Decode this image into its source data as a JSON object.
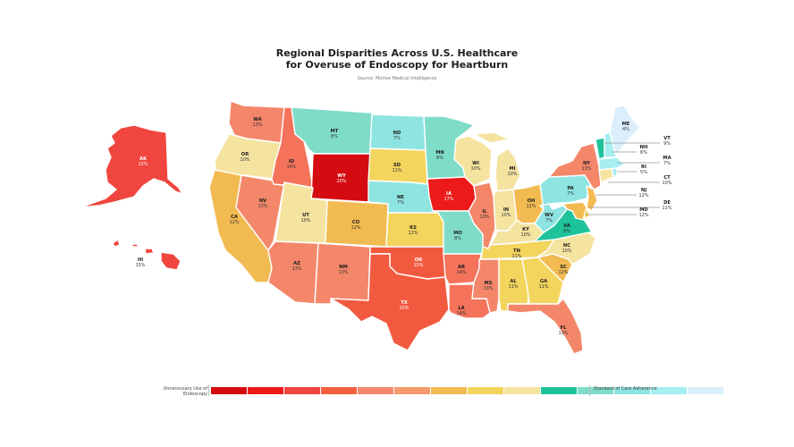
{
  "header": {
    "title_line1": "Regional Disparities Across U.S. Healthcare",
    "title_line2": "for Overuse of Endoscopy for Heartburn",
    "source": "Source: Motive Medical Intelligence"
  },
  "legend": {
    "left_label": "Unnecessary Use of Endoscopy",
    "right_label": "Standard of Care Adherence",
    "colors": [
      "#d40b10",
      "#ec1a1a",
      "#f0463f",
      "#f4603f",
      "#f4876a",
      "#f59a6b",
      "#f2bb52",
      "#f3d45c",
      "#f5e3a0",
      "#1fc39a",
      "#7fdcc8",
      "#8ee4e0",
      "#a6eef0",
      "#dbeefb"
    ]
  },
  "chart_data": {
    "type": "choropleth",
    "title": "Regional Disparities Across U.S. Healthcare for Overuse of Endoscopy for Heartburn",
    "subtitle": "Source: Motive Medical Intelligence",
    "metric": "Overuse of endoscopy for heartburn (%)",
    "legend": {
      "low_label": "Standard of Care Adherence",
      "high_label": "Unnecessary Use of Endoscopy"
    },
    "states": [
      {
        "code": "AK",
        "value": "15%"
      },
      {
        "code": "HI",
        "value": "15%"
      },
      {
        "code": "WA",
        "value": "13%"
      },
      {
        "code": "OR",
        "value": "10%"
      },
      {
        "code": "CA",
        "value": "12%"
      },
      {
        "code": "ID",
        "value": "14%"
      },
      {
        "code": "NV",
        "value": "13%"
      },
      {
        "code": "MT",
        "value": "8%"
      },
      {
        "code": "WY",
        "value": "20%"
      },
      {
        "code": "UT",
        "value": "10%"
      },
      {
        "code": "CO",
        "value": "12%"
      },
      {
        "code": "AZ",
        "value": "13%"
      },
      {
        "code": "NM",
        "value": "13%"
      },
      {
        "code": "ND",
        "value": "7%"
      },
      {
        "code": "SD",
        "value": "11%"
      },
      {
        "code": "NE",
        "value": "7%"
      },
      {
        "code": "KS",
        "value": "11%"
      },
      {
        "code": "OK",
        "value": "15%"
      },
      {
        "code": "TX",
        "value": "15%"
      },
      {
        "code": "MN",
        "value": "8%"
      },
      {
        "code": "IA",
        "value": "17%"
      },
      {
        "code": "MO",
        "value": "8%"
      },
      {
        "code": "AR",
        "value": "14%"
      },
      {
        "code": "LA",
        "value": "14%"
      },
      {
        "code": "WI",
        "value": "10%"
      },
      {
        "code": "IL",
        "value": "13%"
      },
      {
        "code": "MI",
        "value": "10%"
      },
      {
        "code": "IN",
        "value": "10%"
      },
      {
        "code": "OH",
        "value": "12%"
      },
      {
        "code": "KY",
        "value": "10%"
      },
      {
        "code": "TN",
        "value": "11%"
      },
      {
        "code": "MS",
        "value": "13%"
      },
      {
        "code": "AL",
        "value": "11%"
      },
      {
        "code": "GA",
        "value": "11%"
      },
      {
        "code": "FL",
        "value": "13%"
      },
      {
        "code": "SC",
        "value": "12%"
      },
      {
        "code": "NC",
        "value": "10%"
      },
      {
        "code": "VA",
        "value": "8%"
      },
      {
        "code": "WV",
        "value": "7%"
      },
      {
        "code": "PA",
        "value": "7%"
      },
      {
        "code": "NY",
        "value": "13%"
      },
      {
        "code": "ME",
        "value": "4%"
      },
      {
        "code": "VT",
        "value": "9%"
      },
      {
        "code": "NH",
        "value": "6%"
      },
      {
        "code": "MA",
        "value": "7%"
      },
      {
        "code": "RI",
        "value": "5%"
      },
      {
        "code": "CT",
        "value": "10%"
      },
      {
        "code": "NJ",
        "value": "12%"
      },
      {
        "code": "DE",
        "value": "11%"
      },
      {
        "code": "MD",
        "value": "12%"
      }
    ]
  },
  "map": {
    "AK": {
      "label": "AK",
      "value": "15%",
      "color": "#f0463f"
    },
    "HI": {
      "label": "HI",
      "value": "15%",
      "color": "#f0463f"
    },
    "WA": {
      "label": "WA",
      "value": "13%",
      "color": "#f4876a"
    },
    "OR": {
      "label": "OR",
      "value": "10%",
      "color": "#f5e3a0"
    },
    "CA": {
      "label": "CA",
      "value": "12%",
      "color": "#f2bb52"
    },
    "ID": {
      "label": "ID",
      "value": "14%",
      "color": "#f4735a"
    },
    "NV": {
      "label": "NV",
      "value": "13%",
      "color": "#f4876a"
    },
    "MT": {
      "label": "MT",
      "value": "8%",
      "color": "#7fdcc8"
    },
    "WY": {
      "label": "WY",
      "value": "20%",
      "color": "#d40b10"
    },
    "UT": {
      "label": "UT",
      "value": "10%",
      "color": "#f5e3a0"
    },
    "CO": {
      "label": "CO",
      "value": "12%",
      "color": "#f2bb52"
    },
    "AZ": {
      "label": "AZ",
      "value": "13%",
      "color": "#f4876a"
    },
    "NM": {
      "label": "NM",
      "value": "13%",
      "color": "#f4876a"
    },
    "ND": {
      "label": "ND",
      "value": "7%",
      "color": "#8ee4e0"
    },
    "SD": {
      "label": "SD",
      "value": "11%",
      "color": "#f3d45c"
    },
    "NE": {
      "label": "NE",
      "value": "7%",
      "color": "#8ee4e0"
    },
    "KS": {
      "label": "KS",
      "value": "11%",
      "color": "#f3d45c"
    },
    "OK": {
      "label": "OK",
      "value": "15%",
      "color": "#f25a40"
    },
    "TX": {
      "label": "TX",
      "value": "15%",
      "color": "#f25a40"
    },
    "MN": {
      "label": "MN",
      "value": "8%",
      "color": "#7fdcc8"
    },
    "IA": {
      "label": "IA",
      "value": "17%",
      "color": "#ec1a1a"
    },
    "MO": {
      "label": "MO",
      "value": "8%",
      "color": "#7fdcc8"
    },
    "AR": {
      "label": "AR",
      "value": "14%",
      "color": "#f4735a"
    },
    "LA": {
      "label": "LA",
      "value": "14%",
      "color": "#f4735a"
    },
    "WI": {
      "label": "WI",
      "value": "10%",
      "color": "#f5e3a0"
    },
    "IL": {
      "label": "IL",
      "value": "13%",
      "color": "#f4876a"
    },
    "MI": {
      "label": "MI",
      "value": "10%",
      "color": "#f5e3a0"
    },
    "IN": {
      "label": "IN",
      "value": "10%",
      "color": "#f5e3a0"
    },
    "OH": {
      "label": "OH",
      "value": "12%",
      "color": "#f2bb52"
    },
    "KY": {
      "label": "KY",
      "value": "10%",
      "color": "#f5e3a0"
    },
    "TN": {
      "label": "TN",
      "value": "11%",
      "color": "#f3d45c"
    },
    "MS": {
      "label": "MS",
      "value": "13%",
      "color": "#f4876a"
    },
    "AL": {
      "label": "AL",
      "value": "11%",
      "color": "#f3d45c"
    },
    "GA": {
      "label": "GA",
      "value": "11%",
      "color": "#f3d45c"
    },
    "FL": {
      "label": "FL",
      "value": "13%",
      "color": "#f4876a"
    },
    "SC": {
      "label": "SC",
      "value": "12%",
      "color": "#f2bb52"
    },
    "NC": {
      "label": "NC",
      "value": "10%",
      "color": "#f5e3a0"
    },
    "VA": {
      "label": "VA",
      "value": "8%",
      "color": "#1fc39a"
    },
    "WV": {
      "label": "WV",
      "value": "7%",
      "color": "#8ee4e0"
    },
    "PA": {
      "label": "PA",
      "value": "7%",
      "color": "#8ee4e0"
    },
    "NY": {
      "label": "NY",
      "value": "13%",
      "color": "#f4876a"
    },
    "ME": {
      "label": "ME",
      "value": "4%",
      "color": "#dbeefb"
    },
    "VT": {
      "label": "VT",
      "value": "9%",
      "color": "#1fc39a"
    },
    "NH": {
      "label": "NH",
      "value": "6%",
      "color": "#a6eef0"
    },
    "MA": {
      "label": "MA",
      "value": "7%",
      "color": "#a6eef0"
    },
    "RI": {
      "label": "RI",
      "value": "5%",
      "color": "#a6eef0"
    },
    "CT": {
      "label": "CT",
      "value": "10%",
      "color": "#f5e3a0"
    },
    "NJ": {
      "label": "NJ",
      "value": "12%",
      "color": "#f2bb52"
    },
    "DE": {
      "label": "DE",
      "value": "11%",
      "color": "#f3d45c"
    },
    "MD": {
      "label": "MD",
      "value": "12%",
      "color": "#f2bb52"
    }
  }
}
